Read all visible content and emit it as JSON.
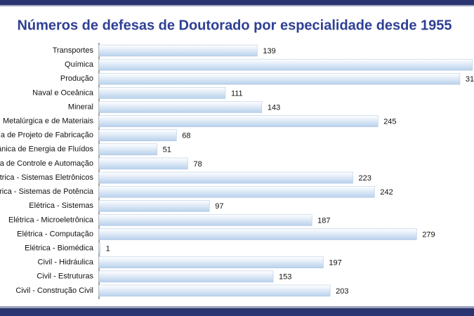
{
  "chart_data": {
    "type": "bar",
    "orientation": "horizontal",
    "title": "Números de defesas de Doutorado por especialidade desde 1955",
    "categories": [
      "Transportes",
      "Química",
      "Produção",
      "Naval e Oceânica",
      "Mineral",
      "Metalúrgica e de Materiais",
      "a de Projeto de Fabricação",
      "ânica de Energia de Fluídos",
      "a de Controle e Automação",
      "étrica - Sistemas Eletrônicos",
      "rica - Sistemas de Potência",
      "Elétrica - Sistemas",
      "Elétrica - Microeletrônica",
      "Elétrica - Computação",
      "Elétrica - Biomédica",
      "Civil - Hidráulica",
      "Civil - Estruturas",
      "Civil - Construção Civil"
    ],
    "values": [
      139,
      328,
      317,
      111,
      143,
      245,
      68,
      51,
      78,
      223,
      242,
      97,
      187,
      279,
      1,
      197,
      153,
      203
    ],
    "color": "#b9d1ec",
    "xlim": [
      0,
      330
    ]
  }
}
